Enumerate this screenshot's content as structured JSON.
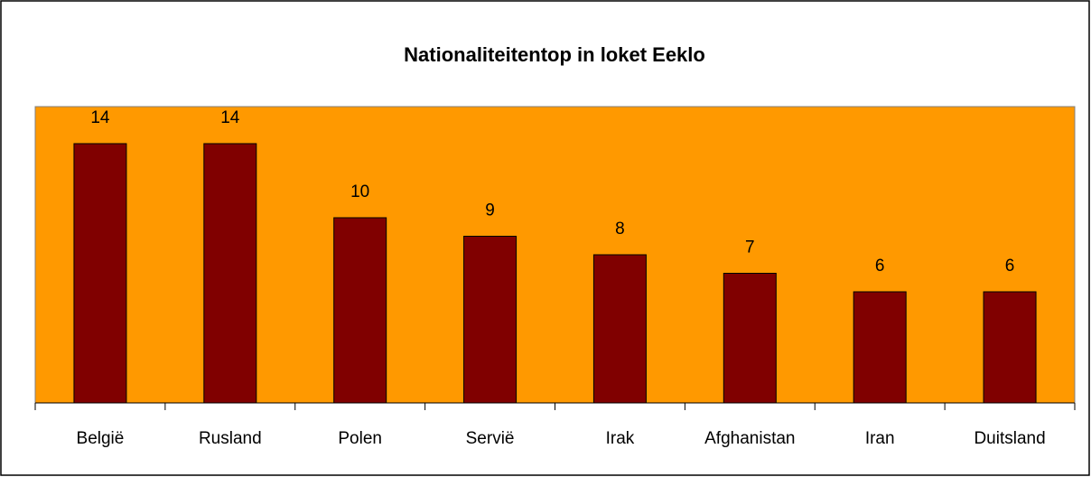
{
  "chart_data": {
    "type": "bar",
    "title": "Nationaliteitentop in loket Eeklo",
    "categories": [
      "België",
      "Rusland",
      "Polen",
      "Servië",
      "Irak",
      "Afghanistan",
      "Iran",
      "Duitsland"
    ],
    "values": [
      14,
      14,
      10,
      9,
      8,
      7,
      6,
      6
    ],
    "color": "#800000",
    "background": "#ff9900",
    "ylim": [
      0,
      16
    ]
  }
}
